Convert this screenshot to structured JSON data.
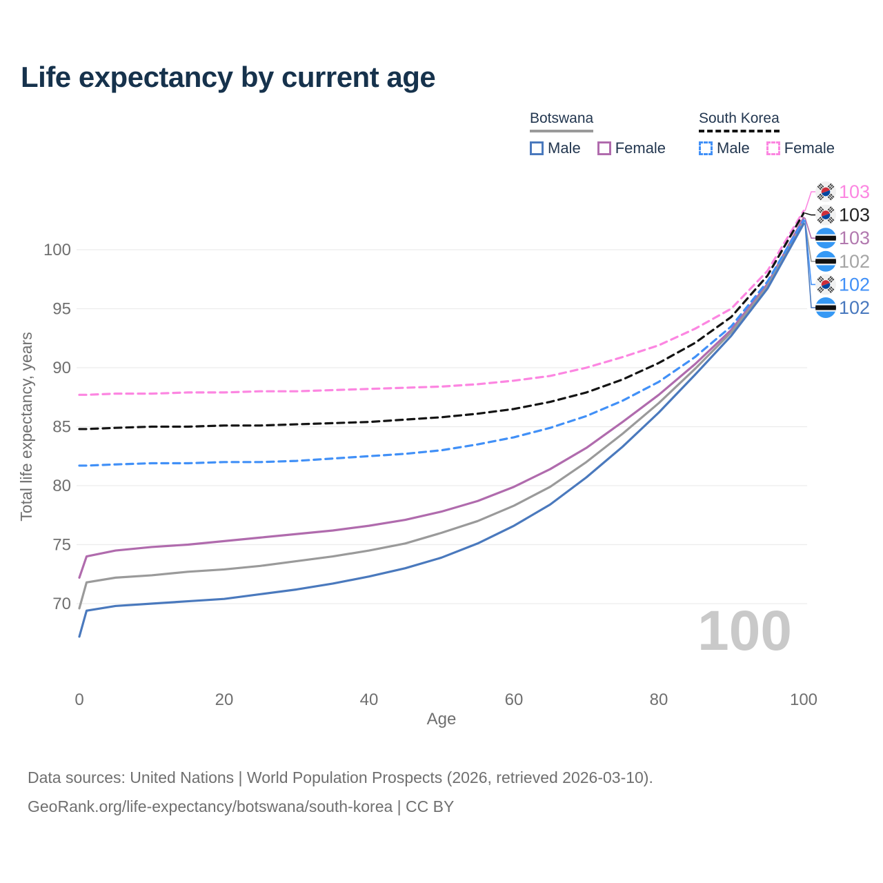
{
  "title": "Life expectancy by current age",
  "legend": {
    "groups": [
      {
        "country": "Botswana",
        "line_color": "#9A9A9A",
        "line_style": "solid",
        "items": [
          {
            "label": "Male",
            "color": "#4A79BD",
            "style": "solid"
          },
          {
            "label": "Female",
            "color": "#B06BAD",
            "style": "solid"
          }
        ]
      },
      {
        "country": "South Korea",
        "line_color": "#141414",
        "line_style": "dashed",
        "items": [
          {
            "label": "Male",
            "color": "#4190F7",
            "style": "dashed"
          },
          {
            "label": "Female",
            "color": "#FC86E1",
            "style": "dashed"
          }
        ]
      }
    ]
  },
  "watermark": "100",
  "footer": {
    "line1": "Data sources: United Nations | World Population Prospects (2026, retrieved 2026-03-10).",
    "line2": "GeoRank.org/life-expectancy/botswana/south-korea | CC BY"
  },
  "colors": {
    "title_text": "#16324C",
    "legend_text": "#233750",
    "axis_text": "#6F6F6F",
    "gridline": "#ECECEC",
    "watermark": "#C9C9C9",
    "botswana_flag_blue": "#3598F4",
    "korea_flag_red": "#CD2E3A",
    "korea_flag_blue": "#0047A0"
  },
  "chart_data": {
    "type": "line",
    "title": "Life expectancy by current age",
    "xlabel": "Age",
    "ylabel": "Total life expectancy, years",
    "xlim": [
      0,
      100
    ],
    "ylim": [
      65,
      104.5
    ],
    "x_ticks": [
      0,
      20,
      40,
      60,
      80,
      100
    ],
    "y_ticks": [
      70,
      75,
      80,
      85,
      90,
      95,
      100
    ],
    "grid": "horizontal",
    "legend_position": "top-right",
    "x": [
      0,
      1,
      5,
      10,
      15,
      20,
      25,
      30,
      35,
      40,
      45,
      50,
      55,
      60,
      65,
      70,
      75,
      80,
      85,
      90,
      95,
      100
    ],
    "series": [
      {
        "name": "South Korea Female",
        "color": "#FC86E1",
        "dash": true,
        "flag": "kr",
        "end_label": "103",
        "end_label_color": "#FC86E1",
        "values": [
          87.7,
          87.7,
          87.8,
          87.8,
          87.9,
          87.9,
          88.0,
          88.0,
          88.1,
          88.2,
          88.3,
          88.4,
          88.6,
          88.9,
          89.3,
          90.0,
          90.9,
          91.9,
          93.3,
          95.0,
          98.2,
          103.3
        ]
      },
      {
        "name": "South Korea Total",
        "color": "#141414",
        "dash": true,
        "flag": "kr",
        "end_label": "103",
        "end_label_color": "#222222",
        "values": [
          84.8,
          84.8,
          84.9,
          85.0,
          85.0,
          85.1,
          85.1,
          85.2,
          85.3,
          85.4,
          85.6,
          85.8,
          86.1,
          86.5,
          87.1,
          87.9,
          89.0,
          90.4,
          92.1,
          94.3,
          97.8,
          103.1
        ]
      },
      {
        "name": "Botswana Female",
        "color": "#B06BAD",
        "dash": false,
        "flag": "bw",
        "end_label": "103",
        "end_label_color": "#B279AF",
        "values": [
          72.2,
          74.0,
          74.5,
          74.8,
          75.0,
          75.3,
          75.6,
          75.9,
          76.2,
          76.6,
          77.1,
          77.8,
          78.7,
          79.9,
          81.4,
          83.2,
          85.4,
          87.7,
          90.3,
          93.2,
          97.1,
          102.7
        ]
      },
      {
        "name": "Botswana Total",
        "color": "#9A9A9A",
        "dash": false,
        "flag": "bw",
        "end_label": "102",
        "end_label_color": "#A5A5A5",
        "values": [
          69.6,
          71.8,
          72.2,
          72.4,
          72.7,
          72.9,
          73.2,
          73.6,
          74.0,
          74.5,
          75.1,
          76.0,
          77.0,
          78.3,
          79.9,
          82.0,
          84.4,
          87.0,
          89.9,
          93.0,
          96.9,
          102.4
        ]
      },
      {
        "name": "South Korea Male",
        "color": "#4190F7",
        "dash": true,
        "flag": "kr",
        "end_label": "102",
        "end_label_color": "#4190F7",
        "values": [
          81.7,
          81.7,
          81.8,
          81.9,
          81.9,
          82.0,
          82.0,
          82.1,
          82.3,
          82.5,
          82.7,
          83.0,
          83.5,
          84.1,
          84.9,
          85.9,
          87.2,
          88.8,
          90.9,
          93.5,
          97.3,
          102.5
        ]
      },
      {
        "name": "Botswana Male",
        "color": "#4A79BD",
        "dash": false,
        "flag": "bw",
        "end_label": "102",
        "end_label_color": "#4878BE",
        "values": [
          67.2,
          69.4,
          69.8,
          70.0,
          70.2,
          70.4,
          70.8,
          71.2,
          71.7,
          72.3,
          73.0,
          73.9,
          75.1,
          76.6,
          78.4,
          80.7,
          83.3,
          86.2,
          89.4,
          92.7,
          96.7,
          102.2
        ]
      }
    ]
  }
}
